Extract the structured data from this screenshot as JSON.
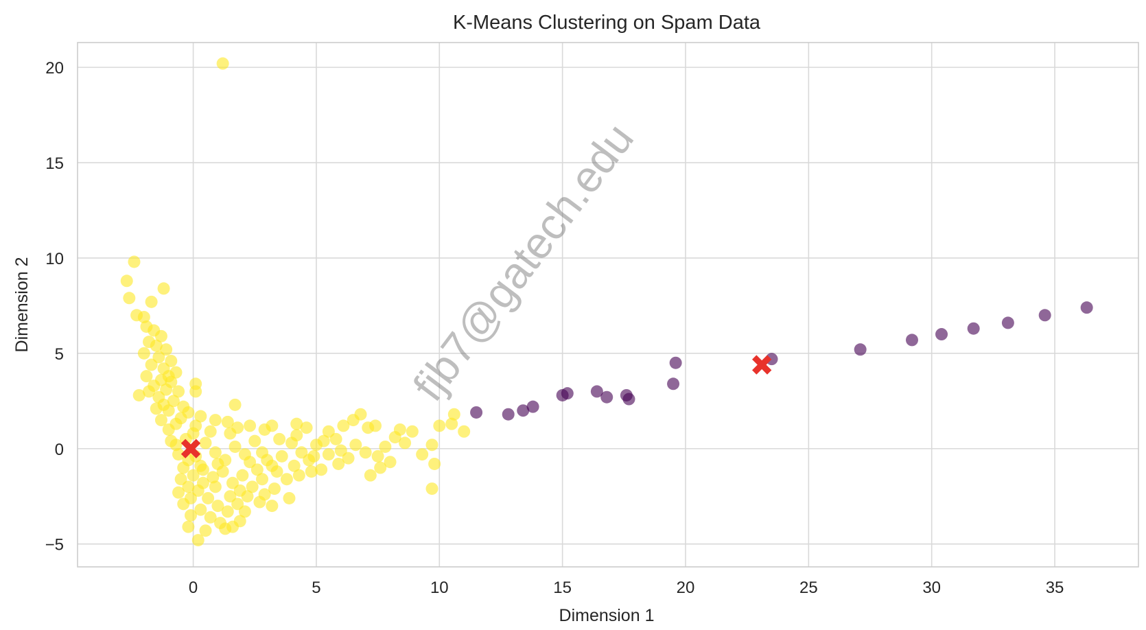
{
  "chart_data": {
    "type": "scatter",
    "title": "K-Means Clustering on Spam Data",
    "xlabel": "Dimension 1",
    "ylabel": "Dimension 2",
    "xlim": [
      -4.7,
      38.4
    ],
    "ylim": [
      -6.2,
      21.3
    ],
    "x_ticks": [
      0,
      5,
      10,
      15,
      20,
      25,
      30,
      35
    ],
    "y_ticks": [
      -5,
      0,
      5,
      10,
      15,
      20
    ],
    "x_tick_labels": [
      "0",
      "5",
      "10",
      "15",
      "20",
      "25",
      "30",
      "35"
    ],
    "y_tick_labels": [
      "−5",
      "0",
      "5",
      "10",
      "15",
      "20"
    ],
    "grid": true,
    "legend": "none",
    "watermark": "fjb7@gatech.edu",
    "colors": {
      "cluster_0": "#440154",
      "cluster_1": "#fde725",
      "centroid": "#e8322b",
      "grid": "#d9d9d9",
      "frame": "#cccccc"
    },
    "clusters": [
      {
        "cluster": 1,
        "color": "#fde725",
        "points": [
          [
            1.2,
            20.2
          ],
          [
            -2.4,
            9.8
          ],
          [
            -2.7,
            8.8
          ],
          [
            -1.2,
            8.4
          ],
          [
            -2.6,
            7.9
          ],
          [
            -1.7,
            7.7
          ],
          [
            -2.3,
            7.0
          ],
          [
            -2.0,
            6.9
          ],
          [
            -1.9,
            6.4
          ],
          [
            -1.6,
            6.2
          ],
          [
            -1.3,
            5.9
          ],
          [
            -1.8,
            5.6
          ],
          [
            -1.5,
            5.4
          ],
          [
            -1.1,
            5.2
          ],
          [
            -2.0,
            5.0
          ],
          [
            -1.4,
            4.8
          ],
          [
            -0.9,
            4.6
          ],
          [
            -1.7,
            4.4
          ],
          [
            -1.2,
            4.2
          ],
          [
            -0.7,
            4.0
          ],
          [
            -1.9,
            3.8
          ],
          [
            -1.3,
            3.6
          ],
          [
            -0.9,
            3.5
          ],
          [
            -1.6,
            3.3
          ],
          [
            0.1,
            3.4
          ],
          [
            0.1,
            3.0
          ],
          [
            -1.1,
            3.1
          ],
          [
            -0.6,
            3.0
          ],
          [
            -2.2,
            2.8
          ],
          [
            -1.4,
            2.7
          ],
          [
            -0.8,
            2.5
          ],
          [
            -1.2,
            2.3
          ],
          [
            -0.4,
            2.2
          ],
          [
            1.7,
            2.3
          ],
          [
            -1.0,
            2.0
          ],
          [
            -0.2,
            1.9
          ],
          [
            0.3,
            1.7
          ],
          [
            0.9,
            1.5
          ],
          [
            1.4,
            1.4
          ],
          [
            -1.3,
            1.5
          ],
          [
            -0.7,
            1.3
          ],
          [
            0.1,
            1.2
          ],
          [
            1.8,
            1.1
          ],
          [
            2.3,
            1.2
          ],
          [
            2.9,
            1.0
          ],
          [
            3.2,
            1.2
          ],
          [
            4.2,
            1.3
          ],
          [
            4.6,
            1.1
          ],
          [
            5.5,
            0.9
          ],
          [
            6.1,
            1.2
          ],
          [
            6.5,
            1.5
          ],
          [
            6.8,
            1.8
          ],
          [
            7.1,
            1.1
          ],
          [
            7.4,
            1.2
          ],
          [
            8.4,
            1.0
          ],
          [
            8.2,
            0.6
          ],
          [
            8.9,
            0.9
          ],
          [
            10.0,
            1.2
          ],
          [
            10.5,
            1.3
          ],
          [
            10.6,
            1.8
          ],
          [
            11.0,
            0.9
          ],
          [
            9.7,
            0.2
          ],
          [
            9.3,
            -0.3
          ],
          [
            9.8,
            -0.8
          ],
          [
            9.7,
            -2.1
          ],
          [
            8.6,
            0.3
          ],
          [
            8.0,
            -0.7
          ],
          [
            7.6,
            -1.0
          ],
          [
            7.2,
            -1.4
          ],
          [
            6.3,
            -0.5
          ],
          [
            5.9,
            -0.8
          ],
          [
            5.5,
            -0.3
          ],
          [
            5.0,
            0.2
          ],
          [
            4.7,
            -0.6
          ],
          [
            4.4,
            -0.2
          ],
          [
            4.0,
            0.3
          ],
          [
            3.6,
            -0.4
          ],
          [
            3.2,
            -0.9
          ],
          [
            2.8,
            -0.2
          ],
          [
            2.5,
            0.4
          ],
          [
            2.1,
            -0.3
          ],
          [
            1.7,
            0.1
          ],
          [
            1.3,
            -0.6
          ],
          [
            0.9,
            -0.2
          ],
          [
            0.5,
            0.3
          ],
          [
            0.1,
            -0.4
          ],
          [
            -0.3,
            0.5
          ],
          [
            -0.6,
            -0.3
          ],
          [
            -0.9,
            0.4
          ],
          [
            -0.4,
            -1.0
          ],
          [
            0.0,
            -1.4
          ],
          [
            0.4,
            -1.1
          ],
          [
            0.8,
            -1.5
          ],
          [
            1.2,
            -1.2
          ],
          [
            1.6,
            -1.8
          ],
          [
            2.0,
            -1.4
          ],
          [
            2.4,
            -2.0
          ],
          [
            2.8,
            -1.6
          ],
          [
            3.3,
            -2.1
          ],
          [
            3.8,
            -1.6
          ],
          [
            4.3,
            -1.4
          ],
          [
            4.8,
            -1.2
          ],
          [
            3.9,
            -2.6
          ],
          [
            3.2,
            -3.0
          ],
          [
            2.7,
            -2.8
          ],
          [
            2.2,
            -2.5
          ],
          [
            1.8,
            -2.9
          ],
          [
            1.4,
            -3.3
          ],
          [
            1.0,
            -3.0
          ],
          [
            0.6,
            -2.6
          ],
          [
            0.2,
            -2.2
          ],
          [
            -0.2,
            -2.0
          ],
          [
            -0.5,
            -1.6
          ],
          [
            0.3,
            -3.2
          ],
          [
            0.7,
            -3.6
          ],
          [
            1.1,
            -3.9
          ],
          [
            1.6,
            -4.1
          ],
          [
            -0.2,
            -4.1
          ],
          [
            0.5,
            -4.3
          ],
          [
            1.3,
            -4.2
          ],
          [
            0.2,
            -4.8
          ],
          [
            -0.1,
            -3.5
          ],
          [
            -0.4,
            -2.9
          ],
          [
            1.9,
            -2.2
          ],
          [
            2.6,
            -1.1
          ],
          [
            3.0,
            -0.6
          ],
          [
            3.5,
            0.5
          ],
          [
            4.2,
            0.7
          ],
          [
            5.2,
            -1.1
          ],
          [
            5.8,
            0.5
          ],
          [
            6.6,
            0.2
          ],
          [
            7.0,
            -0.2
          ],
          [
            1.5,
            0.8
          ],
          [
            0.7,
            0.9
          ],
          [
            -1.0,
            1.0
          ],
          [
            -1.5,
            2.1
          ],
          [
            -1.8,
            3.0
          ],
          [
            -1.0,
            3.8
          ],
          [
            -0.5,
            1.6
          ],
          [
            0.0,
            0.8
          ],
          [
            -0.7,
            0.2
          ],
          [
            -0.2,
            -0.6
          ],
          [
            0.3,
            -0.9
          ],
          [
            1.0,
            -0.8
          ],
          [
            2.3,
            -0.7
          ],
          [
            3.4,
            -1.2
          ],
          [
            4.1,
            -0.9
          ],
          [
            4.9,
            -0.4
          ],
          [
            5.3,
            0.4
          ],
          [
            6.0,
            -0.1
          ],
          [
            7.8,
            0.1
          ],
          [
            7.5,
            -0.4
          ],
          [
            0.9,
            -2.0
          ],
          [
            1.5,
            -2.5
          ],
          [
            2.1,
            -3.3
          ],
          [
            0.4,
            -1.8
          ],
          [
            -0.1,
            -2.6
          ],
          [
            -0.6,
            -2.3
          ],
          [
            1.9,
            -3.8
          ],
          [
            2.9,
            -2.4
          ]
        ]
      },
      {
        "cluster": 0,
        "color": "#440154",
        "points": [
          [
            11.5,
            1.9
          ],
          [
            12.8,
            1.8
          ],
          [
            13.4,
            2.0
          ],
          [
            13.8,
            2.2
          ],
          [
            15.0,
            2.8
          ],
          [
            15.2,
            2.9
          ],
          [
            16.4,
            3.0
          ],
          [
            16.8,
            2.7
          ],
          [
            17.6,
            2.8
          ],
          [
            17.7,
            2.6
          ],
          [
            19.5,
            3.4
          ],
          [
            19.6,
            4.5
          ],
          [
            23.5,
            4.7
          ],
          [
            27.1,
            5.2
          ],
          [
            29.2,
            5.7
          ],
          [
            30.4,
            6.0
          ],
          [
            31.7,
            6.3
          ],
          [
            33.1,
            6.6
          ],
          [
            34.6,
            7.0
          ],
          [
            36.3,
            7.4
          ]
        ]
      }
    ],
    "centroids": [
      [
        -0.1,
        0.0
      ],
      [
        23.1,
        4.4
      ]
    ]
  }
}
